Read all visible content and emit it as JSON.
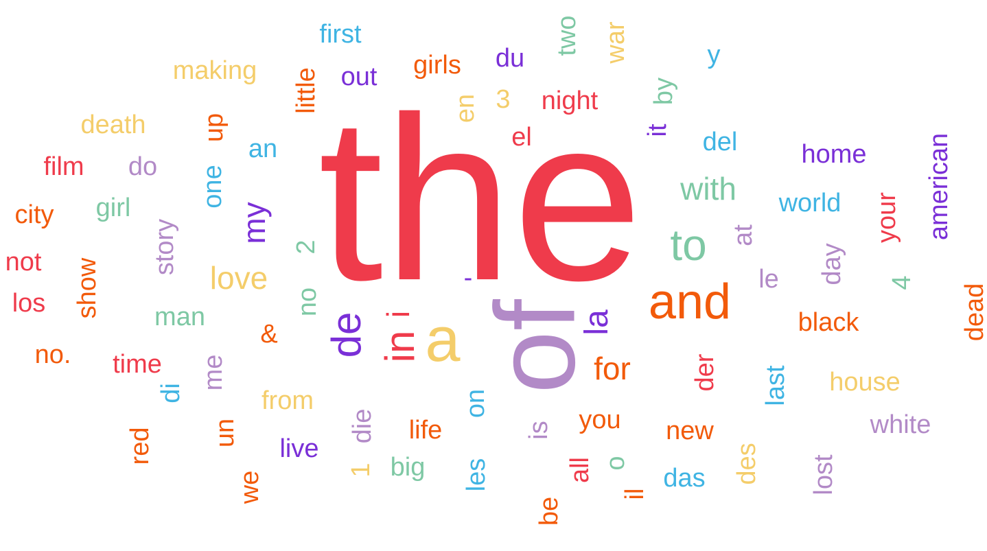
{
  "palette": {
    "red": "#ef3b4b",
    "orange": "#f25a0a",
    "yellow": "#f4cd6a",
    "green": "#7ec8a4",
    "blue": "#3fb4e3",
    "purple": "#7a2fd7",
    "lilac": "#b28ac7"
  },
  "words": [
    {
      "text": "the",
      "color": "red"
    },
    {
      "text": "of",
      "color": "lilac"
    },
    {
      "text": "a",
      "color": "yellow"
    },
    {
      "text": "and",
      "color": "orange"
    },
    {
      "text": "in",
      "color": "red"
    },
    {
      "text": "de",
      "color": "purple"
    },
    {
      "text": "to",
      "color": "green"
    },
    {
      "text": "la",
      "color": "purple"
    },
    {
      "text": "i",
      "color": "red"
    },
    {
      "text": "for",
      "color": "orange"
    },
    {
      "text": "with",
      "color": "green"
    },
    {
      "text": "my",
      "color": "purple"
    },
    {
      "text": "love",
      "color": "yellow"
    },
    {
      "text": "first",
      "color": "blue"
    },
    {
      "text": "making",
      "color": "yellow"
    },
    {
      "text": "girls",
      "color": "orange"
    },
    {
      "text": "du",
      "color": "purple"
    },
    {
      "text": "two",
      "color": "green"
    },
    {
      "text": "war",
      "color": "yellow"
    },
    {
      "text": "y",
      "color": "blue"
    },
    {
      "text": "out",
      "color": "purple"
    },
    {
      "text": "little",
      "color": "orange"
    },
    {
      "text": "3",
      "color": "yellow"
    },
    {
      "text": "night",
      "color": "red"
    },
    {
      "text": "en",
      "color": "yellow"
    },
    {
      "text": "by",
      "color": "green"
    },
    {
      "text": "death",
      "color": "yellow"
    },
    {
      "text": "up",
      "color": "orange"
    },
    {
      "text": "el",
      "color": "red"
    },
    {
      "text": "it",
      "color": "purple"
    },
    {
      "text": "del",
      "color": "blue"
    },
    {
      "text": "an",
      "color": "blue"
    },
    {
      "text": "home",
      "color": "purple"
    },
    {
      "text": "american",
      "color": "purple"
    },
    {
      "text": "film",
      "color": "red"
    },
    {
      "text": "do",
      "color": "lilac"
    },
    {
      "text": "one",
      "color": "blue"
    },
    {
      "text": "world",
      "color": "blue"
    },
    {
      "text": "your",
      "color": "red"
    },
    {
      "text": "city",
      "color": "orange"
    },
    {
      "text": "girl",
      "color": "green"
    },
    {
      "text": "story",
      "color": "lilac"
    },
    {
      "text": "at",
      "color": "lilac"
    },
    {
      "text": "2",
      "color": "green"
    },
    {
      "text": "not",
      "color": "red"
    },
    {
      "text": "show",
      "color": "orange"
    },
    {
      "text": "day",
      "color": "lilac"
    },
    {
      "text": "-",
      "color": "purple"
    },
    {
      "text": "le",
      "color": "lilac"
    },
    {
      "text": "4",
      "color": "green"
    },
    {
      "text": "los",
      "color": "red"
    },
    {
      "text": "no",
      "color": "green"
    },
    {
      "text": "dead",
      "color": "orange"
    },
    {
      "text": "man",
      "color": "green"
    },
    {
      "text": "&",
      "color": "orange"
    },
    {
      "text": "black",
      "color": "orange"
    },
    {
      "text": "no.",
      "color": "orange"
    },
    {
      "text": "time",
      "color": "red"
    },
    {
      "text": "me",
      "color": "lilac"
    },
    {
      "text": "der",
      "color": "red"
    },
    {
      "text": "last",
      "color": "blue"
    },
    {
      "text": "house",
      "color": "yellow"
    },
    {
      "text": "di",
      "color": "blue"
    },
    {
      "text": "from",
      "color": "yellow"
    },
    {
      "text": "on",
      "color": "blue"
    },
    {
      "text": "die",
      "color": "lilac"
    },
    {
      "text": "you",
      "color": "orange"
    },
    {
      "text": "white",
      "color": "lilac"
    },
    {
      "text": "red",
      "color": "orange"
    },
    {
      "text": "un",
      "color": "orange"
    },
    {
      "text": "life",
      "color": "orange"
    },
    {
      "text": "is",
      "color": "lilac"
    },
    {
      "text": "new",
      "color": "orange"
    },
    {
      "text": "live",
      "color": "purple"
    },
    {
      "text": "1",
      "color": "yellow"
    },
    {
      "text": "big",
      "color": "green"
    },
    {
      "text": "les",
      "color": "blue"
    },
    {
      "text": "o",
      "color": "green"
    },
    {
      "text": "all",
      "color": "red"
    },
    {
      "text": "des",
      "color": "yellow"
    },
    {
      "text": "lost",
      "color": "lilac"
    },
    {
      "text": "das",
      "color": "blue"
    },
    {
      "text": "we",
      "color": "orange"
    },
    {
      "text": "il",
      "color": "orange"
    },
    {
      "text": "be",
      "color": "orange"
    }
  ]
}
